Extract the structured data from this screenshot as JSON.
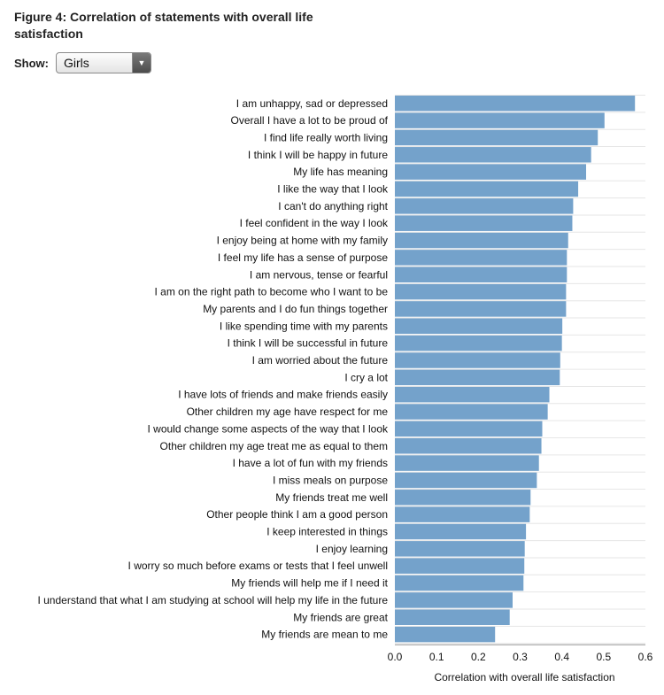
{
  "figure": {
    "title": "Figure 4: Correlation of statements with overall life satisfaction"
  },
  "controls": {
    "show_label": "Show:",
    "selected": "Girls",
    "dropdown_icon": "triangle-down-icon"
  },
  "colors": {
    "bar": "#74a2cb",
    "grid": "#e6e6e6"
  },
  "chart_data": {
    "type": "bar",
    "orientation": "horizontal",
    "xlabel": "Correlation with overall life satisfaction",
    "xlim": [
      0,
      0.6
    ],
    "xticks": [
      "0.0",
      "0.1",
      "0.2",
      "0.3",
      "0.4",
      "0.5",
      "0.6"
    ],
    "grid": true,
    "categories": [
      "I am unhappy, sad or depressed",
      "Overall I have a lot to be proud of",
      "I find life really worth living",
      "I think I will be happy in future",
      "My life has meaning",
      "I like the way that I look",
      "I can't do anything right",
      "I feel confident in the way I look",
      "I enjoy being at home with my family",
      "I feel my life has a sense of purpose",
      "I am nervous, tense or fearful",
      "I am on the right path to become who I want to be",
      "My parents and I do fun things together",
      "I like spending time with my parents",
      "I think I will be successful in future",
      "I am worried about the future",
      "I cry a lot",
      "I have lots of friends and make friends easily",
      "Other children my age have respect for me",
      "I would change some aspects of the way that I look",
      "Other children my age treat me as equal to them",
      "I have a lot of fun with my friends",
      "I miss meals on purpose",
      "My friends treat me well",
      "Other people think I am a good person",
      "I keep interested in things",
      "I enjoy learning",
      "I worry so much before exams or tests that I feel unwell",
      "My friends will help me if I need it",
      "I understand that what I am studying at school will help my life in the future",
      "My friends are great",
      "My friends are mean to me"
    ],
    "values": [
      0.575,
      0.502,
      0.486,
      0.47,
      0.458,
      0.439,
      0.427,
      0.425,
      0.415,
      0.412,
      0.412,
      0.41,
      0.41,
      0.401,
      0.4,
      0.396,
      0.395,
      0.37,
      0.366,
      0.353,
      0.351,
      0.345,
      0.34,
      0.325,
      0.323,
      0.314,
      0.311,
      0.31,
      0.308,
      0.282,
      0.275,
      0.24
    ]
  }
}
